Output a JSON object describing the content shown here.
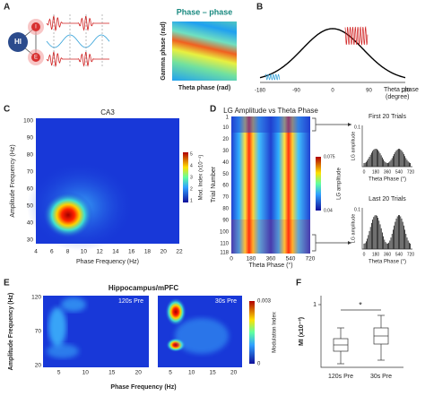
{
  "panel_a": {
    "label": "A",
    "nodes": [
      "HI",
      "I",
      "E"
    ],
    "title": "Phase – phase",
    "y_label": "Gamma phase (rad)",
    "x_label": "Theta phase (rad)"
  },
  "panel_b": {
    "label": "B",
    "x_ticks": [
      -180,
      -90,
      0,
      90,
      180
    ],
    "x_label": [
      "Theta phase",
      "(degree)"
    ]
  },
  "panel_c": {
    "label": "C",
    "title": "CA3",
    "y_label": "Amplitude Frequency (Hz)",
    "y_ticks": [
      100,
      90,
      80,
      70,
      60,
      50,
      40,
      30
    ],
    "x_ticks": [
      4,
      6,
      8,
      10,
      12,
      14,
      16,
      18,
      20,
      22
    ],
    "x_label": "Phase Frequency (Hz)",
    "colorbar_ticks": [
      5,
      4,
      3,
      2,
      1
    ],
    "colorbar_label": "Mod. Index (x10⁻⁴)"
  },
  "panel_d": {
    "label": "D",
    "title": "LG Amplitude vs Theta Phase",
    "y_label": "Trial Number",
    "y_ticks": [
      1,
      10,
      20,
      30,
      40,
      50,
      60,
      70,
      80,
      90,
      100,
      110,
      118
    ],
    "x_ticks": [
      0,
      180,
      360,
      540,
      720
    ],
    "x_label": "Theta Phase (°)",
    "colorbar_ticks": [
      0.075,
      0.04
    ],
    "colorbar_label": "LG amplitude",
    "insets": [
      {
        "title": "First 20 Trials",
        "y_label": "LG amplitude",
        "y_tick": 0.1,
        "x_ticks": [
          0,
          180,
          360,
          540,
          720
        ],
        "x_label": "Theta Phase (°)"
      },
      {
        "title": "Last 20 Trials",
        "y_label": "LG amplitude",
        "y_tick": 0.1,
        "x_ticks": [
          0,
          180,
          360,
          540,
          720
        ],
        "x_label": "Theta Phase (°)"
      }
    ]
  },
  "panel_e": {
    "label": "E",
    "title": "Hippocampus/mPFC",
    "y_label": "Amplitude Frequency (Hz)",
    "y_ticks": [
      120,
      70,
      20
    ],
    "x_ticks": [
      5,
      10,
      15,
      20
    ],
    "x_label": "Phase Frequency (Hz)",
    "maps": [
      "120s Pre",
      "30s Pre"
    ],
    "colorbar_ticks": [
      0.003,
      0
    ],
    "colorbar_label": "Modulation Index"
  },
  "panel_f": {
    "label": "F",
    "y_label": "MI (x10⁻³)",
    "y_ticks": [
      1
    ],
    "groups": [
      "120s Pre",
      "30s Pre"
    ],
    "significance": "*"
  }
}
